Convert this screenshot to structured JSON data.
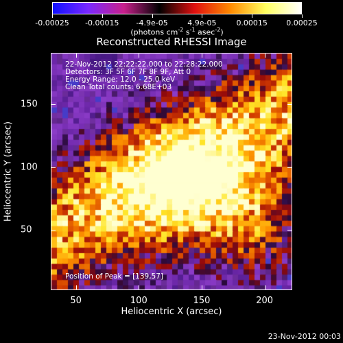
{
  "colorbar": {
    "tick_labels": [
      "-0.00025",
      "-0.00015",
      "-4.9e-05",
      "4.9e-05",
      "0.00015",
      "0.00025"
    ],
    "units_prefix": "(photons cm",
    "units_exp1": "-2",
    "units_mid": " s",
    "units_exp2": "-1",
    "units_mid2": " asec",
    "units_exp3": "-2",
    "units_suffix": ")",
    "colors": [
      "#1010ff",
      "#7a28ff",
      "#c8208c",
      "#000000",
      "#e01010",
      "#ff8a00",
      "#ffff60",
      "#ffffff"
    ]
  },
  "title": "Reconstructed RHESSI Image",
  "info": {
    "time_range": "22-Nov-2012 22:22:22.000 to 22:28:22.000",
    "detectors": "Detectors: 3F 5F 6F 7F 8F 9F, Att 0",
    "energy": "Energy Range: 12.0 - 25.0 keV",
    "clean": "Clean     Total counts: 6.68E+03"
  },
  "peak": "Position of Peak = [139,57]",
  "axes": {
    "x_label": "Heliocentric X (arcsec)",
    "y_label": "Heliocentric Y (arcsec)",
    "x_ticks": [
      "50",
      "100",
      "150",
      "200"
    ],
    "y_ticks": [
      "50",
      "100",
      "150"
    ],
    "x_range": [
      30,
      222
    ],
    "y_range": [
      2,
      191
    ]
  },
  "footer": "23-Nov-2012 00:03"
}
